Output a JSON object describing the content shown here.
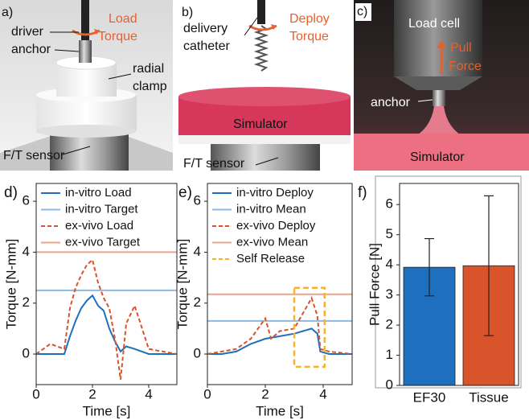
{
  "photos": [
    {
      "label": "a)",
      "texts": [
        "driver",
        "anchor",
        "Load",
        "Torque",
        "radial",
        "clamp",
        "F/T sensor"
      ]
    },
    {
      "label": "b)",
      "texts": [
        "delivery",
        "catheter",
        "Deploy",
        "Torque",
        "Simulator",
        "F/T sensor"
      ]
    },
    {
      "label": "c)",
      "texts": [
        "Load cell",
        "Pull",
        "Force",
        "anchor",
        "Simulator"
      ]
    }
  ],
  "chart_data": [
    {
      "type": "line",
      "label": "d)",
      "xlabel": "Time [s]",
      "ylabel": "Torque [N-mm]",
      "xlim": [
        0,
        5
      ],
      "xticks": [
        0,
        2,
        4
      ],
      "ylim": [
        -1.2,
        6.7
      ],
      "yticks": [
        0,
        2,
        4,
        6
      ],
      "series": [
        {
          "name": "in-vitro Load",
          "color": "#1f6fbf",
          "style": "solid",
          "x": [
            0,
            0.5,
            1,
            1.2,
            1.4,
            1.6,
            1.8,
            2.0,
            2.2,
            2.4,
            2.6,
            2.8,
            3.0,
            3.2,
            3.5,
            4.0,
            4.5,
            5
          ],
          "values": [
            0,
            0,
            0,
            0.7,
            1.3,
            1.8,
            2.1,
            2.3,
            1.9,
            1.7,
            1.0,
            0.5,
            0.1,
            0.3,
            0.2,
            0,
            0,
            0
          ]
        },
        {
          "name": "in-vitro Target",
          "color": "#8fb8e0",
          "style": "solid",
          "x": [
            0,
            5
          ],
          "values": [
            2.5,
            2.5
          ]
        },
        {
          "name": "ex-vivo Load",
          "color": "#d9542a",
          "style": "dashed",
          "x": [
            0,
            0.5,
            1,
            1.2,
            1.4,
            1.6,
            1.8,
            2.0,
            2.2,
            2.4,
            2.6,
            2.8,
            3.0,
            3.2,
            3.5,
            4.0,
            4.5,
            5
          ],
          "values": [
            0,
            0.4,
            0.2,
            1.8,
            2.6,
            3.1,
            3.5,
            3.7,
            2.8,
            2.2,
            1.8,
            0.6,
            -1.0,
            1.2,
            1.9,
            0.2,
            0.1,
            0
          ]
        },
        {
          "name": "ex-vivo Target",
          "color": "#eba38f",
          "style": "solid",
          "x": [
            0,
            5
          ],
          "values": [
            4.0,
            4.0
          ]
        }
      ]
    },
    {
      "type": "line",
      "label": "e)",
      "xlabel": "Time [s]",
      "ylabel": "Torque [N-mm]",
      "xlim": [
        0,
        5
      ],
      "xticks": [
        0,
        2,
        4
      ],
      "ylim": [
        -1.2,
        6.7
      ],
      "yticks": [
        0,
        2,
        4,
        6
      ],
      "series": [
        {
          "name": "in-vitro Deploy",
          "color": "#1f6fbf",
          "style": "solid",
          "x": [
            0,
            0.5,
            1,
            1.5,
            2.0,
            2.5,
            3.0,
            3.3,
            3.6,
            3.8,
            3.9,
            4.2,
            5
          ],
          "values": [
            0,
            0,
            0.1,
            0.4,
            0.6,
            0.7,
            0.8,
            0.9,
            1.0,
            0.8,
            0.1,
            0,
            0
          ]
        },
        {
          "name": "in-vitro Mean",
          "color": "#8fb8e0",
          "style": "solid",
          "x": [
            0,
            5
          ],
          "values": [
            1.3,
            1.3
          ]
        },
        {
          "name": "ex-vivo Deploy",
          "color": "#d9542a",
          "style": "dashed",
          "x": [
            0,
            0.5,
            1,
            1.5,
            2.0,
            2.2,
            2.5,
            3.0,
            3.3,
            3.6,
            3.8,
            3.9,
            4.2,
            5
          ],
          "values": [
            0,
            0.1,
            0.2,
            0.6,
            1.4,
            0.6,
            0.9,
            1.0,
            1.6,
            2.2,
            1.5,
            0.2,
            0.1,
            0
          ]
        },
        {
          "name": "ex-vivo Mean",
          "color": "#eba38f",
          "style": "solid",
          "x": [
            0,
            5
          ],
          "values": [
            2.35,
            2.35
          ]
        }
      ],
      "box": {
        "name": "Self Release",
        "color": "#f5b233",
        "x": [
          3.0,
          4.05
        ],
        "y": [
          -0.5,
          2.6
        ]
      }
    },
    {
      "type": "bar",
      "label": "f)",
      "ylabel": "Pull Force [N]",
      "categories": [
        "EF30",
        "Tissue"
      ],
      "values": [
        3.92,
        3.97
      ],
      "errors": [
        0.95,
        2.32
      ],
      "colors": [
        "#1f6fbf",
        "#d9542a"
      ],
      "ylim": [
        0,
        6.7
      ],
      "yticks": [
        0,
        1,
        2,
        3,
        4,
        5,
        6
      ]
    }
  ]
}
